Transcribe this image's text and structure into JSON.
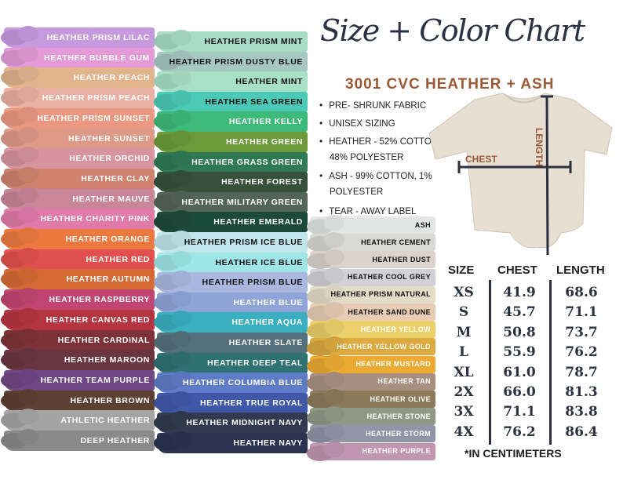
{
  "title": "Size + Color Chart",
  "subtitle": "3001 CVC HEATHER + ASH",
  "features": [
    "PRE- SHRUNK FABRIC",
    "UNISEX SIZING",
    "HEATHER - 52% COTTON,",
    "48% POLYESTER",
    "ASH -  99% COTTON, 1%",
    "POLYESTER",
    "TEAR -  AWAY LABEL"
  ],
  "shirt": {
    "chest_label": "CHEST",
    "length_label": "LENGTH",
    "color": "#e6dfd2"
  },
  "size_table": {
    "headers": [
      "SIZE",
      "CHEST",
      "LENGTH"
    ],
    "rows": [
      [
        "XS",
        "41.9",
        "68.6"
      ],
      [
        "S",
        "45.7",
        "71.1"
      ],
      [
        "M",
        "50.8",
        "73.7"
      ],
      [
        "L",
        "55.9",
        "76.2"
      ],
      [
        "XL",
        "61.0",
        "78.7"
      ],
      [
        "2X",
        "66.0",
        "81.3"
      ],
      [
        "3X",
        "71.1",
        "83.8"
      ],
      [
        "4X",
        "76.2",
        "86.4"
      ]
    ],
    "footnote": "*IN CENTIMETERS"
  },
  "columns": [
    [
      {
        "name": "HEATHER PRISM LILAC",
        "color": "#c79ae0",
        "text": "#ffffff"
      },
      {
        "name": "HEATHER BUBBLE GUM",
        "color": "#e39ad6",
        "text": "#ffffff"
      },
      {
        "name": "HEATHER PEACH",
        "color": "#e2b48e",
        "text": "#ffffff"
      },
      {
        "name": "HEATHER PRISM PEACH",
        "color": "#eab0a2",
        "text": "#ffffff"
      },
      {
        "name": "HEATHER PRISM SUNSET",
        "color": "#eb9882",
        "text": "#ffffff"
      },
      {
        "name": "HEATHER SUNSET",
        "color": "#de9a86",
        "text": "#ffffff"
      },
      {
        "name": "HEATHER ORCHID",
        "color": "#d7939f",
        "text": "#ffffff"
      },
      {
        "name": "HEATHER CLAY",
        "color": "#cf826e",
        "text": "#ffffff"
      },
      {
        "name": "HEATHER MAUVE",
        "color": "#c9859a",
        "text": "#ffffff"
      },
      {
        "name": "HEATHER CHARITY PINK",
        "color": "#e07aa8",
        "text": "#ffffff"
      },
      {
        "name": "HEATHER ORANGE",
        "color": "#ec7a40",
        "text": "#ffffff"
      },
      {
        "name": "HEATHER RED",
        "color": "#e0504e",
        "text": "#ffffff"
      },
      {
        "name": "HEATHER AUTUMN",
        "color": "#d56a35",
        "text": "#ffffff"
      },
      {
        "name": "HEATHER RASPBERRY",
        "color": "#c14570",
        "text": "#ffffff"
      },
      {
        "name": "HEATHER CANVAS RED",
        "color": "#b43440",
        "text": "#ffffff"
      },
      {
        "name": "HEATHER CARDINAL",
        "color": "#7c3238",
        "text": "#ffffff"
      },
      {
        "name": "HEATHER MAROON",
        "color": "#693540",
        "text": "#ffffff"
      },
      {
        "name": "HEATHER TEAM PURPLE",
        "color": "#6f4784",
        "text": "#ffffff"
      },
      {
        "name": "HEATHER BROWN",
        "color": "#5c4032",
        "text": "#ffffff"
      },
      {
        "name": "ATHLETIC HEATHER",
        "color": "#a4a4a4",
        "text": "#ffffff"
      },
      {
        "name": "DEEP HEATHER",
        "color": "#8a8a8a",
        "text": "#ffffff"
      }
    ],
    [
      {
        "name": "HEATHER PRISM MINT",
        "color": "#a9dcc8",
        "text": "#111111"
      },
      {
        "name": "HEATHER PRISM DUSTY BLUE",
        "color": "#a5c8c0",
        "text": "#111111"
      },
      {
        "name": "HEATHER MINT",
        "color": "#a8e0c6",
        "text": "#111111"
      },
      {
        "name": "HEATHER SEA GREEN",
        "color": "#4ccab8",
        "text": "#111111"
      },
      {
        "name": "HEATHER KELLY",
        "color": "#3dba78",
        "text": "#ffffff"
      },
      {
        "name": "HEATHER GREEN",
        "color": "#6c9a3a",
        "text": "#ffffff"
      },
      {
        "name": "HEATHER GRASS GREEN",
        "color": "#2f7a55",
        "text": "#ffffff"
      },
      {
        "name": "HEATHER FOREST",
        "color": "#35513a",
        "text": "#ffffff"
      },
      {
        "name": "HEATHER MILITARY GREEN",
        "color": "#53645a",
        "text": "#ffffff"
      },
      {
        "name": "HEATHER EMERALD",
        "color": "#1c4a3a",
        "text": "#ffffff"
      },
      {
        "name": "HEATHER PRISM ICE BLUE",
        "color": "#bfe6ea",
        "text": "#111111"
      },
      {
        "name": "HEATHER ICE BLUE",
        "color": "#9ee6e8",
        "text": "#111111"
      },
      {
        "name": "HEATHER PRISM BLUE",
        "color": "#aab8e0",
        "text": "#111111"
      },
      {
        "name": "HEATHER BLUE",
        "color": "#8fa4d8",
        "text": "#ffffff"
      },
      {
        "name": "HEATHER AQUA",
        "color": "#3aafc0",
        "text": "#ffffff"
      },
      {
        "name": "HEATHER SLATE",
        "color": "#54707c",
        "text": "#ffffff"
      },
      {
        "name": "HEATHER DEEP TEAL",
        "color": "#2e7272",
        "text": "#ffffff"
      },
      {
        "name": "HEATHER COLUMBIA BLUE",
        "color": "#5f7cc8",
        "text": "#ffffff"
      },
      {
        "name": "HEATHER TRUE ROYAL",
        "color": "#4058a8",
        "text": "#ffffff"
      },
      {
        "name": "HEATHER MIDNIGHT NAVY",
        "color": "#313a50",
        "text": "#ffffff"
      },
      {
        "name": "HEATHER NAVY",
        "color": "#2b3350",
        "text": "#ffffff"
      }
    ],
    [
      {
        "name": "ASH",
        "color": "#e4e6e6",
        "text": "#111111"
      },
      {
        "name": "HEATHER CEMENT",
        "color": "#d8d8d4",
        "text": "#111111"
      },
      {
        "name": "HEATHER DUST",
        "color": "#dcd3cc",
        "text": "#111111"
      },
      {
        "name": "HEATHER COOL GREY",
        "color": "#d2d2d6",
        "text": "#111111"
      },
      {
        "name": "HEATHER PRISM NATURAL",
        "color": "#e4ddc8",
        "text": "#111111"
      },
      {
        "name": "HEATHER SAND DUNE",
        "color": "#e6cdb4",
        "text": "#111111"
      },
      {
        "name": "HEATHER YELLOW",
        "color": "#ecd06a",
        "text": "#ffffff"
      },
      {
        "name": "HEATHER YELLOW GOLD",
        "color": "#dcaa3e",
        "text": "#ffffff"
      },
      {
        "name": "HEATHER MUSTARD",
        "color": "#ecaa32",
        "text": "#ffffff"
      },
      {
        "name": "HEATHER TAN",
        "color": "#a89080",
        "text": "#ffffff"
      },
      {
        "name": "HEATHER OLIVE",
        "color": "#8c7a5a",
        "text": "#ffffff"
      },
      {
        "name": "HEATHER STONE",
        "color": "#8e9a86",
        "text": "#ffffff"
      },
      {
        "name": "HEATHER STORM",
        "color": "#9294a8",
        "text": "#ffffff"
      },
      {
        "name": "HEATHER PURPLE",
        "color": "#c096b0",
        "text": "#ffffff"
      }
    ]
  ]
}
